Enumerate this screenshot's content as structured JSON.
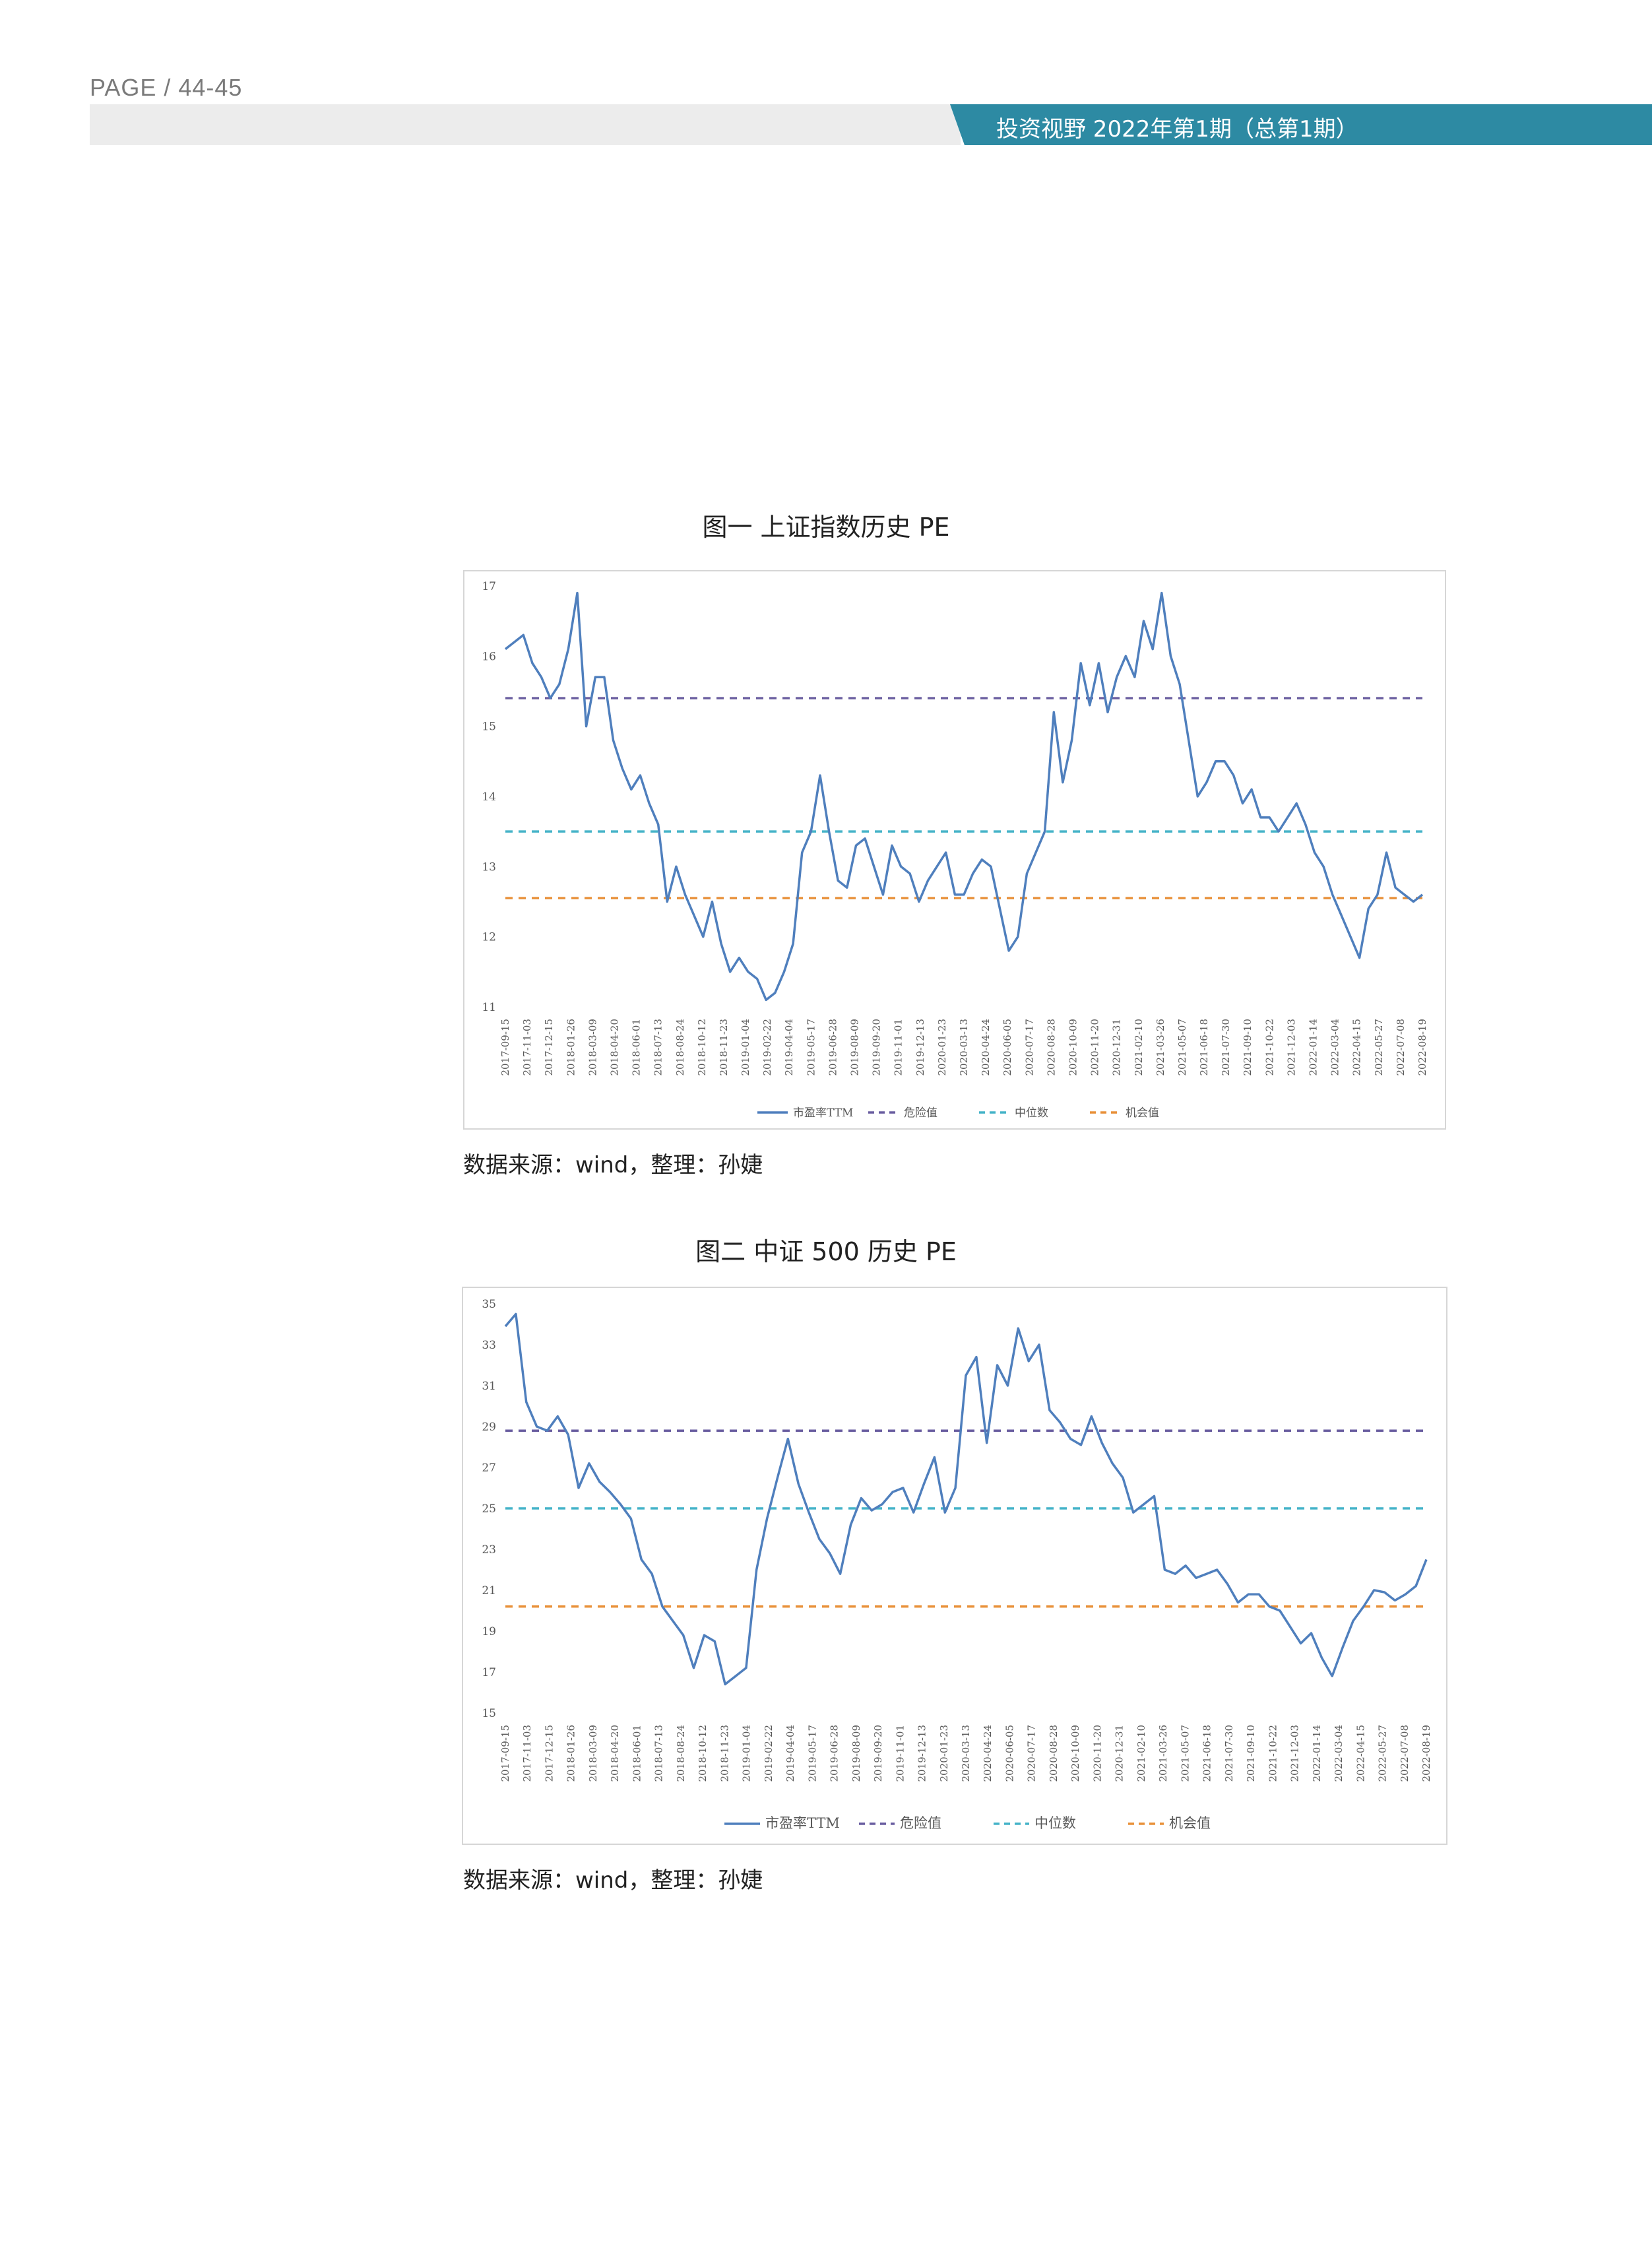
{
  "header": {
    "page_label": "PAGE / 44-45",
    "publication": "投资视野  2022年第1期（总第1期）"
  },
  "figures": [
    {
      "title": "图一 上证指数历史 PE",
      "source": "数据来源：wind，整理：孙婕"
    },
    {
      "title": "图二 中证 500 历史 PE",
      "source": "数据来源：wind，整理：孙婕"
    }
  ],
  "colors": {
    "pe_line": "#4f7fbd",
    "danger": "#6a5ea0",
    "median": "#45b3c8",
    "opportunity": "#e8913a",
    "header_band": "#2d8aa3"
  },
  "chart_data": [
    {
      "type": "line",
      "title": "图一 上证指数历史 PE",
      "ylim": [
        11,
        17
      ],
      "yticks": [
        11,
        12,
        13,
        14,
        15,
        16,
        17
      ],
      "x_tick_labels": [
        "2017-09-15",
        "2017-11-03",
        "2017-12-15",
        "2018-01-26",
        "2018-03-09",
        "2018-04-20",
        "2018-06-01",
        "2018-07-13",
        "2018-08-24",
        "2018-10-12",
        "2018-11-23",
        "2019-01-04",
        "2019-02-22",
        "2019-04-04",
        "2019-05-17",
        "2019-06-28",
        "2019-08-09",
        "2019-09-20",
        "2019-11-01",
        "2019-12-13",
        "2020-01-23",
        "2020-03-13",
        "2020-04-24",
        "2020-06-05",
        "2020-07-17",
        "2020-08-28",
        "2020-10-09",
        "2020-11-20",
        "2020-12-31",
        "2021-02-10",
        "2021-03-26",
        "2021-05-07",
        "2021-06-18",
        "2021-07-30",
        "2021-09-10",
        "2021-10-22",
        "2021-12-03",
        "2022-01-14",
        "2022-03-04",
        "2022-04-15",
        "2022-05-27",
        "2022-07-08",
        "2022-08-19"
      ],
      "legend": [
        "市盈率TTM",
        "危险值",
        "中位数",
        "机会值"
      ],
      "series": [
        {
          "name": "市盈率TTM",
          "style": "solid",
          "values": [
            16.1,
            16.2,
            16.3,
            15.9,
            15.7,
            15.4,
            15.6,
            16.1,
            16.9,
            15.0,
            15.7,
            15.7,
            14.8,
            14.4,
            14.1,
            14.3,
            13.9,
            13.6,
            12.5,
            13.0,
            12.6,
            12.3,
            12.0,
            12.5,
            11.9,
            11.5,
            11.7,
            11.5,
            11.4,
            11.1,
            11.2,
            11.5,
            11.9,
            13.2,
            13.5,
            14.3,
            13.5,
            12.8,
            12.7,
            13.3,
            13.4,
            13.0,
            12.6,
            13.3,
            13.0,
            12.9,
            12.5,
            12.8,
            13.0,
            13.2,
            12.6,
            12.6,
            12.9,
            13.1,
            13.0,
            12.4,
            11.8,
            12.0,
            12.9,
            13.2,
            13.5,
            15.2,
            14.2,
            14.8,
            15.9,
            15.3,
            15.9,
            15.2,
            15.7,
            16.0,
            15.7,
            16.5,
            16.1,
            16.9,
            16.0,
            15.6,
            14.8,
            14.0,
            14.2,
            14.5,
            14.5,
            14.3,
            13.9,
            14.1,
            13.7,
            13.7,
            13.5,
            13.7,
            13.9,
            13.6,
            13.2,
            13.0,
            12.6,
            12.3,
            12.0,
            11.7,
            12.4,
            12.6,
            13.2,
            12.7,
            12.6,
            12.5,
            12.6
          ]
        },
        {
          "name": "危险值",
          "style": "dashed",
          "values": [
            15.4
          ]
        },
        {
          "name": "中位数",
          "style": "dashed",
          "values": [
            13.5
          ]
        },
        {
          "name": "机会值",
          "style": "dashed",
          "values": [
            12.55
          ]
        }
      ]
    },
    {
      "type": "line",
      "title": "图二 中证 500 历史 PE",
      "ylim": [
        15,
        35
      ],
      "yticks": [
        15,
        17,
        19,
        21,
        23,
        25,
        27,
        29,
        31,
        33,
        35
      ],
      "x_tick_labels": [
        "2017-09-15",
        "2017-11-03",
        "2017-12-15",
        "2018-01-26",
        "2018-03-09",
        "2018-04-20",
        "2018-06-01",
        "2018-07-13",
        "2018-08-24",
        "2018-10-12",
        "2018-11-23",
        "2019-01-04",
        "2019-02-22",
        "2019-04-04",
        "2019-05-17",
        "2019-06-28",
        "2019-08-09",
        "2019-09-20",
        "2019-11-01",
        "2019-12-13",
        "2020-01-23",
        "2020-03-13",
        "2020-04-24",
        "2020-06-05",
        "2020-07-17",
        "2020-08-28",
        "2020-10-09",
        "2020-11-20",
        "2020-12-31",
        "2021-02-10",
        "2021-03-26",
        "2021-05-07",
        "2021-06-18",
        "2021-07-30",
        "2021-09-10",
        "2021-10-22",
        "2021-12-03",
        "2022-01-14",
        "2022-03-04",
        "2022-04-15",
        "2022-05-27",
        "2022-07-08",
        "2022-08-19"
      ],
      "legend": [
        "市盈率TTM",
        "危险值",
        "中位数",
        "机会值"
      ],
      "series": [
        {
          "name": "市盈率TTM",
          "style": "solid",
          "values": [
            33.9,
            34.5,
            30.2,
            29.0,
            28.8,
            29.5,
            28.6,
            26.0,
            27.2,
            26.3,
            25.8,
            25.2,
            24.5,
            22.5,
            21.8,
            20.2,
            19.5,
            18.8,
            17.2,
            18.8,
            18.5,
            16.4,
            16.8,
            17.2,
            22.0,
            24.5,
            26.5,
            28.4,
            26.2,
            24.8,
            23.5,
            22.8,
            21.8,
            24.2,
            25.5,
            24.9,
            25.2,
            25.8,
            26.0,
            24.8,
            26.2,
            27.5,
            24.8,
            26.0,
            31.5,
            32.4,
            28.2,
            32.0,
            31.0,
            33.8,
            32.2,
            33.0,
            29.8,
            29.2,
            28.4,
            28.1,
            29.5,
            28.2,
            27.2,
            26.5,
            24.8,
            25.2,
            25.6,
            22.0,
            21.8,
            22.2,
            21.6,
            21.8,
            22.0,
            21.3,
            20.4,
            20.8,
            20.8,
            20.2,
            20.0,
            19.2,
            18.4,
            18.9,
            17.7,
            16.8,
            18.2,
            19.5,
            20.2,
            21.0,
            20.9,
            20.5,
            20.8,
            21.2,
            22.5
          ]
        },
        {
          "name": "危险值",
          "style": "dashed",
          "values": [
            28.8
          ]
        },
        {
          "name": "中位数",
          "style": "dashed",
          "values": [
            25.0
          ]
        },
        {
          "name": "机会值",
          "style": "dashed",
          "values": [
            20.2
          ]
        }
      ]
    }
  ]
}
